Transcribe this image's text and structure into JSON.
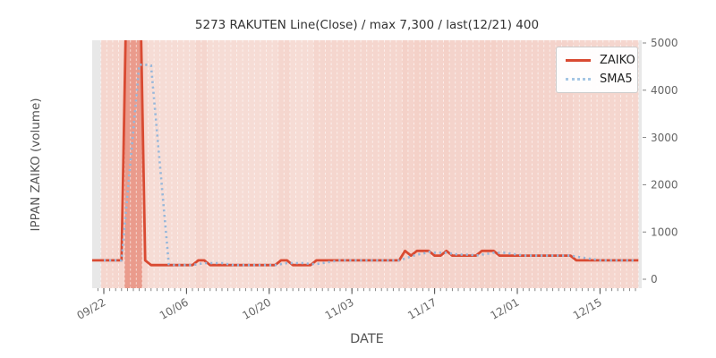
{
  "title": "5273 RAKUTEN Line(Close) / max 7,300 / last(12/21) 400",
  "legend": {
    "items": [
      {
        "label": "ZAIKO",
        "color": "#d94a32",
        "line_style": "solid"
      },
      {
        "label": "SMA5",
        "color": "#a5c6e4",
        "line_style": "dotted"
      }
    ]
  },
  "stats": {
    "max_value": 7300,
    "last_date": "12/21",
    "last_value": 400
  },
  "chart_data": {
    "type": "line",
    "title": "5273 RAKUTEN Line(Close) / max 7,300 / last(12/21) 400",
    "xlabel": "DATE",
    "ylabel": "IPPAN ZAIKO (volume)",
    "x_tick_labels": [
      "09/22",
      "10/06",
      "10/20",
      "11/03",
      "11/17",
      "12/01",
      "12/15"
    ],
    "x_tick_indices": [
      0,
      14,
      28,
      42,
      56,
      70,
      84
    ],
    "y_ticks": [
      0,
      1000,
      2000,
      3000,
      4000,
      5000
    ],
    "ylim": [
      -190,
      5060
    ],
    "legend_position": "upper right",
    "grid": "vertical white dashed per-day",
    "dates": [
      "09/22",
      "09/23",
      "09/24",
      "09/25",
      "09/26",
      "09/27",
      "09/28",
      "09/29",
      "09/30",
      "10/01",
      "10/02",
      "10/03",
      "10/04",
      "10/05",
      "10/06",
      "10/07",
      "10/08",
      "10/09",
      "10/10",
      "10/11",
      "10/12",
      "10/13",
      "10/14",
      "10/15",
      "10/16",
      "10/17",
      "10/18",
      "10/19",
      "10/20",
      "10/21",
      "10/22",
      "10/23",
      "10/24",
      "10/25",
      "10/26",
      "10/27",
      "10/28",
      "10/29",
      "10/30",
      "10/31",
      "11/01",
      "11/02",
      "11/03",
      "11/04",
      "11/05",
      "11/06",
      "11/07",
      "11/08",
      "11/09",
      "11/10",
      "11/11",
      "11/12",
      "11/13",
      "11/14",
      "11/15",
      "11/16",
      "11/17",
      "11/18",
      "11/19",
      "11/20",
      "11/21",
      "11/22",
      "11/23",
      "11/24",
      "11/25",
      "11/26",
      "11/27",
      "11/28",
      "11/29",
      "11/30",
      "12/01",
      "12/02",
      "12/03",
      "12/04",
      "12/05",
      "12/06",
      "12/07",
      "12/08",
      "12/09",
      "12/10",
      "12/11",
      "12/12",
      "12/13",
      "12/14",
      "12/15",
      "12/16",
      "12/17",
      "12/18",
      "12/19",
      "12/20",
      "12/21"
    ],
    "series": [
      {
        "name": "ZAIKO",
        "color": "#d94a32",
        "line_style": "solid",
        "values": [
          400,
          400,
          400,
          400,
          7300,
          7300,
          7300,
          400,
          300,
          300,
          300,
          300,
          300,
          300,
          300,
          300,
          400,
          400,
          300,
          300,
          300,
          300,
          300,
          300,
          300,
          300,
          300,
          300,
          300,
          300,
          400,
          400,
          300,
          300,
          300,
          300,
          400,
          400,
          400,
          400,
          400,
          400,
          400,
          400,
          400,
          400,
          400,
          400,
          400,
          400,
          400,
          600,
          500,
          600,
          600,
          600,
          500,
          500,
          600,
          500,
          500,
          500,
          500,
          500,
          600,
          600,
          600,
          500,
          500,
          500,
          500,
          500,
          500,
          500,
          500,
          500,
          500,
          500,
          500,
          500,
          400,
          400,
          400,
          400,
          400,
          400,
          400,
          400,
          400,
          400,
          400
        ]
      },
      {
        "name": "SMA5",
        "color": "#97b7da",
        "line_style": "dotted",
        "values": [
          400,
          400,
          400,
          400,
          1780,
          3160,
          4540,
          4540,
          4520,
          3120,
          1720,
          320,
          300,
          300,
          300,
          300,
          320,
          340,
          340,
          340,
          340,
          320,
          300,
          300,
          300,
          300,
          300,
          300,
          300,
          300,
          320,
          340,
          340,
          340,
          340,
          320,
          320,
          340,
          360,
          380,
          400,
          400,
          400,
          400,
          400,
          400,
          400,
          400,
          400,
          400,
          400,
          440,
          480,
          520,
          540,
          580,
          560,
          560,
          560,
          540,
          520,
          520,
          520,
          500,
          520,
          540,
          560,
          560,
          560,
          540,
          520,
          500,
          500,
          500,
          500,
          500,
          500,
          500,
          500,
          500,
          480,
          460,
          440,
          420,
          400,
          400,
          400,
          400,
          400,
          400,
          400
        ]
      }
    ],
    "background": {
      "plot_bg": "#e8e8e8",
      "band_color_low": "#f6dcd5",
      "band_color_high": "#ea9b8c",
      "band_rule": "each day shaded darker for higher ZAIKO value",
      "gridline_color": "#ffffff"
    },
    "text_colors": {
      "title": "#333333",
      "ticks": "#666666",
      "axis_labels": "#555555"
    }
  }
}
